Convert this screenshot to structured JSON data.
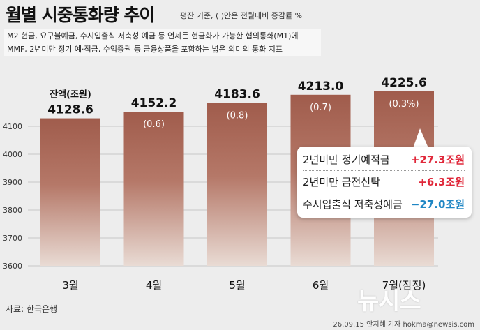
{
  "header": {
    "title": "월별 시중통화량 추이",
    "note": "평잔 기준, ( )안은 전월대비 증감률 %"
  },
  "description": {
    "line1": "M2 현금, 요구불예금, 수시입출식 저축성 예금 등 언제든 현금화가 가능한 협의통화(M1)에",
    "line2": "MMF, 2년미만 정기 예·적금, 수익증권 등 금융상품을 포함하는 넓은 의미의 통화 지표"
  },
  "chart_data": {
    "type": "bar",
    "categories": [
      "3월",
      "4월",
      "5월",
      "6월",
      "7월(잠정)"
    ],
    "values": [
      4128.6,
      4152.2,
      4183.6,
      4213.0,
      4225.6
    ],
    "value_labels": [
      "4128.6",
      "4152.2",
      "4183.6",
      "4213.0",
      "4225.6"
    ],
    "change_labels": [
      "",
      "(0.6)",
      "(0.8)",
      "(0.7)",
      "(0.3%)"
    ],
    "first_bar_label": "잔액(조원)",
    "yticks": [
      3600,
      3700,
      3800,
      3900,
      4000,
      4100
    ],
    "ylim": [
      3600,
      4250
    ],
    "grid": true,
    "colors": {
      "bar_top": "#a05c4c",
      "bar_mid": "#b57868",
      "bar_bottom": "#e9dbd4"
    }
  },
  "callout": {
    "items": [
      {
        "label": "2년미만 정기예적금",
        "value": "+27.3조원",
        "color": "#e0283a"
      },
      {
        "label": "2년미만 금전신탁",
        "value": "+6.3조원",
        "color": "#e0283a"
      },
      {
        "label": "수시입출식 저축성예금",
        "value": "−27.0조원",
        "color": "#1f86c4"
      }
    ]
  },
  "footer": {
    "source": "자료: 한국은행",
    "credit": "26.09.15 안지혜 기자 hokma@newsis.com",
    "logo": "뉴시스"
  }
}
